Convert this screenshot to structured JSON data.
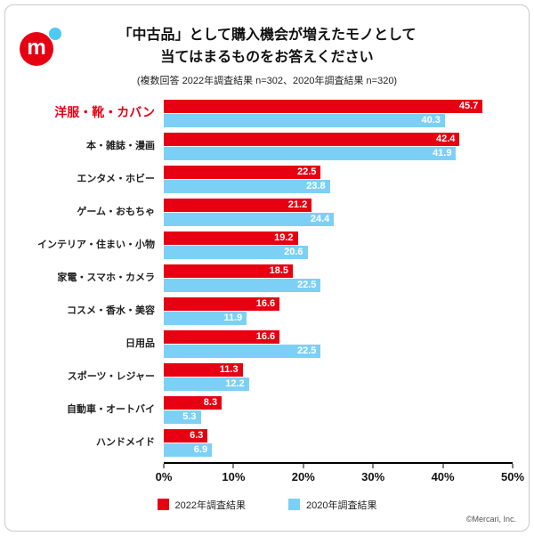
{
  "header": {
    "title_lines": [
      "「中古品」として購入機会が増えたモノとして",
      "当てはまるものをお答えください"
    ],
    "subtitle": "(複数回答 2022年調査結果 n=302、2020年調査結果 n=320)"
  },
  "logo": {
    "name": "mercari-logo",
    "letter": "m",
    "circle_color": "#e60012",
    "dot_color": "#4dc9f2"
  },
  "chart_data": {
    "type": "bar",
    "orientation": "horizontal",
    "title": "「中古品」として購入機会が増えたモノとして当てはまるものをお答えください",
    "categories": [
      "洋服・靴・カバン",
      "本・雑誌・漫画",
      "エンタメ・ホビー",
      "ゲーム・おもちゃ",
      "インテリア・住まい・小物",
      "家電・スマホ・カメラ",
      "コスメ・香水・美容",
      "日用品",
      "スポーツ・レジャー",
      "自動車・オートバイ",
      "ハンドメイド"
    ],
    "series": [
      {
        "name": "2022年調査結果",
        "color": "#e60012",
        "values": [
          45.7,
          42.4,
          22.5,
          21.2,
          19.2,
          18.5,
          16.6,
          16.6,
          11.3,
          8.3,
          6.3
        ]
      },
      {
        "name": "2020年調査結果",
        "color": "#7dd0f5",
        "values": [
          40.3,
          41.9,
          23.8,
          24.4,
          20.6,
          22.5,
          11.9,
          22.5,
          12.2,
          5.3,
          6.9
        ]
      }
    ],
    "xlim": [
      0,
      50
    ],
    "x_ticks": [
      "0%",
      "10%",
      "20%",
      "30%",
      "40%",
      "50%"
    ],
    "grid": false,
    "legend_position": "bottom",
    "highlight_category": "洋服・靴・カバン",
    "highlight_color": "#e60012"
  },
  "footer": {
    "copyright": "©Mercari, Inc."
  }
}
